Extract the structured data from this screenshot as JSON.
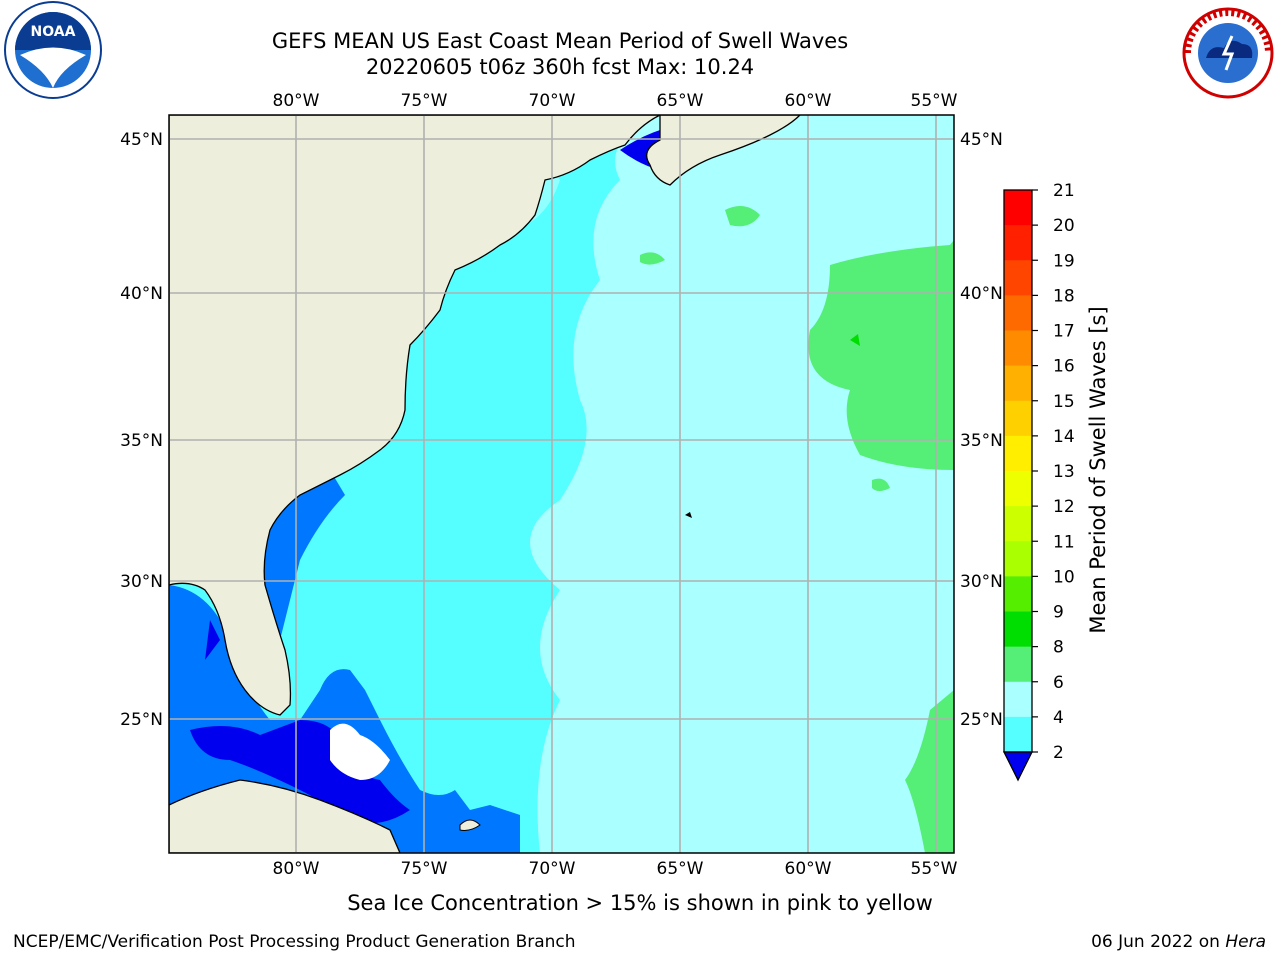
{
  "header": {
    "title_line1": "GEFS MEAN US East Coast Mean Period of Swell Waves",
    "title_line2": "20220605 t06z 360h fcst   Max: 10.24",
    "left_logo": "noaa-logo",
    "right_logo": "national-weather-service-logo"
  },
  "map": {
    "extent": {
      "lon_min": -85,
      "lon_max": -54.2,
      "lat_min": 20.5,
      "lat_max": 45.8
    },
    "lon_ticks": [
      "80°W",
      "75°W",
      "70°W",
      "65°W",
      "60°W",
      "55°W"
    ],
    "lat_ticks": [
      "45°N",
      "40°N",
      "35°N",
      "30°N",
      "25°N"
    ],
    "colors": {
      "land": "#eeeedd",
      "grid": "#b0b0b0",
      "coast": "#000000"
    }
  },
  "colorbar": {
    "label": "Mean Period of Swell Waves [s]",
    "ticks": [
      "21",
      "20",
      "19",
      "18",
      "17",
      "16",
      "15",
      "14",
      "13",
      "12",
      "11",
      "10",
      "9",
      "8",
      "6",
      "4",
      "2"
    ],
    "colors": [
      "#ff0000",
      "#ff2000",
      "#ff4500",
      "#ff6a00",
      "#ff8c00",
      "#ffb000",
      "#ffd000",
      "#ffee00",
      "#eeff00",
      "#ccff00",
      "#aaff00",
      "#55ee00",
      "#00dd00",
      "#55ee77",
      "#aaffff",
      "#55ffff",
      "#00ffff",
      "#0077ff"
    ],
    "extend_color": "#0000ee"
  },
  "footer": {
    "note": "Sea Ice Concentration > 15% is shown in pink to yellow",
    "branch": "NCEP/EMC/Verification Post Processing Product Generation Branch",
    "date": "06 Jun 2022 on",
    "machine": "Hera"
  }
}
